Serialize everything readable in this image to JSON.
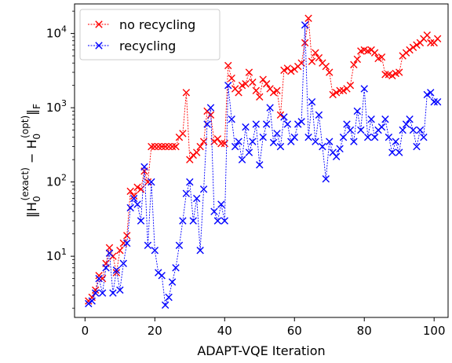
{
  "chart_data": {
    "type": "line",
    "title": "",
    "xlabel": "ADAPT-VQE Iteration",
    "ylabel": "‖H₀(exact) − H₀(opt)‖F",
    "ylabel_parts": {
      "norm_open": "‖H",
      "sub": "0",
      "sup_exact": "(exact)",
      "minus": " − H",
      "sup_opt": "(opt)",
      "norm_close": "‖",
      "sub_F": "F"
    },
    "xlim": [
      -3,
      104
    ],
    "ylim": [
      1.5,
      25000
    ],
    "yscale": "log",
    "grid": false,
    "legend": "top-left",
    "x_ticks": [
      0,
      20,
      40,
      60,
      80,
      100
    ],
    "x_tick_labels": [
      "0",
      "20",
      "40",
      "60",
      "80",
      "100"
    ],
    "y_ticks": [
      10,
      100,
      1000,
      10000
    ],
    "y_tick_labels": [
      {
        "base": "10",
        "exp": "1"
      },
      {
        "base": "10",
        "exp": "2"
      },
      {
        "base": "10",
        "exp": "3"
      },
      {
        "base": "10",
        "exp": "4"
      }
    ],
    "x": [
      1,
      2,
      3,
      4,
      5,
      6,
      7,
      8,
      9,
      10,
      11,
      12,
      13,
      14,
      15,
      16,
      17,
      18,
      19,
      20,
      21,
      22,
      23,
      24,
      25,
      26,
      27,
      28,
      29,
      30,
      31,
      32,
      33,
      34,
      35,
      36,
      37,
      38,
      39,
      40,
      41,
      42,
      43,
      44,
      45,
      46,
      47,
      48,
      49,
      50,
      51,
      52,
      53,
      54,
      55,
      56,
      57,
      58,
      59,
      60,
      61,
      62,
      63,
      64,
      65,
      66,
      67,
      68,
      69,
      70,
      71,
      72,
      73,
      74,
      75,
      76,
      77,
      78,
      79,
      80,
      81,
      82,
      83,
      84,
      85,
      86,
      87,
      88,
      89,
      90,
      91,
      92,
      93,
      94,
      95,
      96,
      97,
      98,
      99,
      100,
      101
    ],
    "series": [
      {
        "name": "no recycling",
        "color": "#ff0000",
        "values": [
          2.5,
          2.8,
          3.5,
          5.5,
          5,
          8,
          13,
          10,
          6,
          12,
          15,
          19,
          75,
          65,
          85,
          80,
          140,
          100,
          300,
          300,
          300,
          300,
          300,
          300,
          300,
          300,
          400,
          450,
          1600,
          200,
          230,
          250,
          300,
          350,
          900,
          800,
          350,
          380,
          330,
          330,
          3700,
          2500,
          1800,
          1600,
          2000,
          2100,
          3000,
          2200,
          1700,
          1400,
          2400,
          2100,
          1800,
          1600,
          1700,
          800,
          3200,
          3400,
          3100,
          3300,
          3600,
          4000,
          7500,
          16000,
          4200,
          5500,
          4700,
          4000,
          3600,
          3000,
          1500,
          1600,
          1700,
          1700,
          1800,
          2000,
          3800,
          4500,
          5800,
          6000,
          5800,
          6000,
          5500,
          4600,
          4800,
          2800,
          2800,
          2700,
          2900,
          3000,
          5000,
          5500,
          6000,
          6500,
          7000,
          7500,
          8500,
          9500,
          7500,
          7500,
          8500
        ]
      },
      {
        "name": "recycling",
        "color": "#0000ff",
        "values": [
          2.3,
          2.5,
          3.2,
          5,
          3.2,
          7,
          11,
          3.2,
          6.5,
          3.5,
          8,
          15,
          45,
          60,
          50,
          30,
          160,
          14,
          100,
          12,
          6,
          5.5,
          2.2,
          2.8,
          4.5,
          7,
          14,
          30,
          70,
          100,
          30,
          60,
          12,
          80,
          600,
          1000,
          40,
          30,
          50,
          30,
          2000,
          700,
          300,
          350,
          200,
          550,
          250,
          350,
          600,
          170,
          400,
          600,
          1000,
          340,
          450,
          300,
          750,
          600,
          350,
          400,
          600,
          650,
          13000,
          400,
          1200,
          350,
          800,
          300,
          110,
          350,
          250,
          220,
          280,
          400,
          600,
          500,
          350,
          900,
          500,
          1800,
          400,
          700,
          400,
          500,
          550,
          700,
          400,
          250,
          350,
          250,
          500,
          600,
          700,
          500,
          300,
          500,
          400,
          1500,
          1600,
          1200,
          1200
        ]
      }
    ]
  }
}
